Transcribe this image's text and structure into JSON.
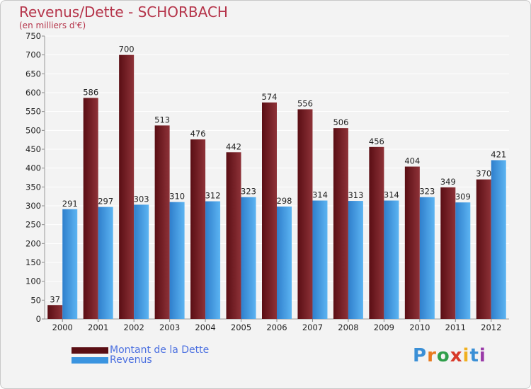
{
  "header": {
    "title": "Revenus/Dette - SCHORBACH",
    "subtitle": "(en milliers d'€)"
  },
  "chart_data": {
    "type": "bar",
    "title": "Revenus/Dette - SCHORBACH",
    "subtitle": "(en milliers d'€)",
    "xlabel": "",
    "ylabel": "",
    "ylim": [
      0,
      750
    ],
    "yticks": [
      0,
      50,
      100,
      150,
      200,
      250,
      300,
      350,
      400,
      450,
      500,
      550,
      600,
      650,
      700,
      750
    ],
    "grid": true,
    "legend_position": "bottom-left",
    "categories": [
      "2000",
      "2001",
      "2002",
      "2003",
      "2004",
      "2005",
      "2006",
      "2007",
      "2008",
      "2009",
      "2010",
      "2011",
      "2012"
    ],
    "series": [
      {
        "name": "Montant de la Dette",
        "color": "#7a1e26",
        "values": [
          37,
          586,
          700,
          513,
          476,
          442,
          574,
          556,
          506,
          456,
          404,
          349,
          370
        ]
      },
      {
        "name": "Revenus",
        "color": "#4a9fe6",
        "values": [
          291,
          297,
          303,
          310,
          312,
          323,
          298,
          314,
          313,
          314,
          323,
          309,
          421
        ]
      }
    ]
  },
  "logo": {
    "letters": [
      "P",
      "r",
      "o",
      "x",
      "i",
      "t",
      "i"
    ],
    "colors": [
      "#3a8fd6",
      "#e87a1e",
      "#2f9e4a",
      "#d83a2a",
      "#f0b020",
      "#3a8fd6",
      "#9a3aa8"
    ]
  }
}
